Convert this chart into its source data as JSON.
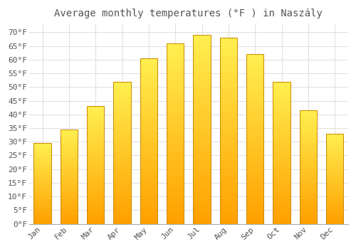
{
  "title": "Average monthly temperatures (°F ) in Naszály",
  "months": [
    "Jan",
    "Feb",
    "Mar",
    "Apr",
    "May",
    "Jun",
    "Jul",
    "Aug",
    "Sep",
    "Oct",
    "Nov",
    "Dec"
  ],
  "values": [
    29.5,
    34.5,
    43.0,
    52.0,
    60.5,
    66.0,
    69.0,
    68.0,
    62.0,
    52.0,
    41.5,
    33.0
  ],
  "bar_color_top": "#FFC020",
  "bar_color_bottom": "#FFA000",
  "bar_edge_color": "#CC8800",
  "background_color": "#FFFFFF",
  "grid_color": "#DDDDDD",
  "text_color": "#555555",
  "ylim": [
    0,
    73
  ],
  "yticks": [
    0,
    5,
    10,
    15,
    20,
    25,
    30,
    35,
    40,
    45,
    50,
    55,
    60,
    65,
    70
  ],
  "title_fontsize": 10,
  "tick_fontsize": 8,
  "font_family": "monospace"
}
